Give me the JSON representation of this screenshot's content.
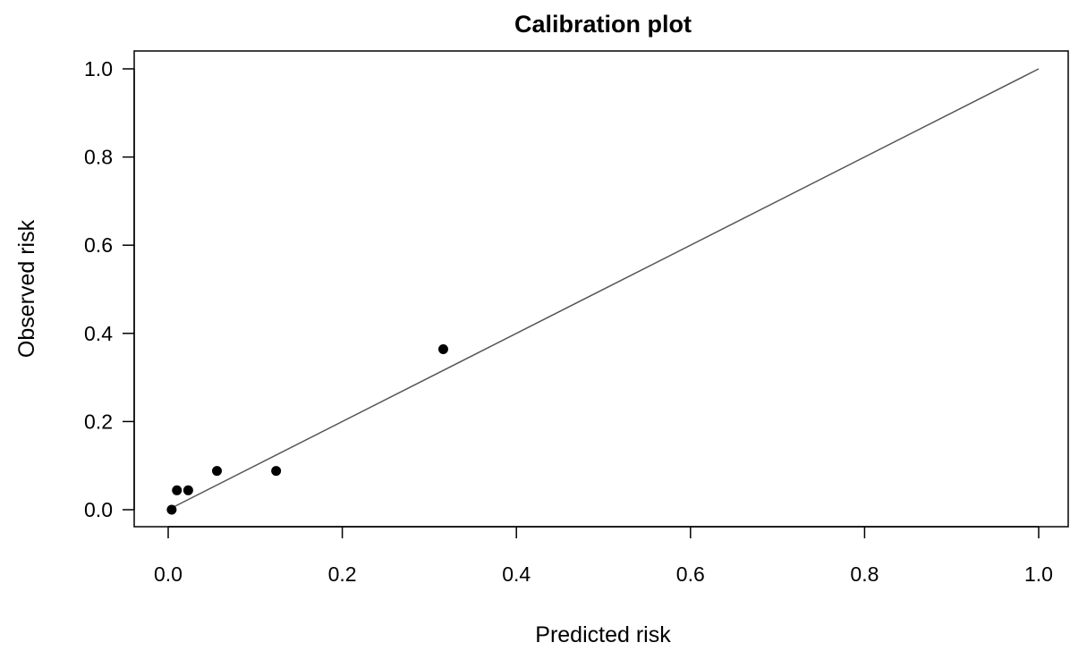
{
  "chart_data": {
    "type": "scatter",
    "title": "Calibration plot",
    "xlabel": "Predicted risk",
    "ylabel": "Observed risk",
    "xlim": [
      0,
      1
    ],
    "ylim": [
      0,
      1
    ],
    "x_ticks": [
      "0.0",
      "0.2",
      "0.4",
      "0.6",
      "0.8",
      "1.0"
    ],
    "y_ticks": [
      "0.0",
      "0.2",
      "0.4",
      "0.6",
      "0.8",
      "1.0"
    ],
    "grid": false,
    "legend": "none",
    "series": [
      {
        "points": [
          {
            "x": 0.004,
            "y": 0.0
          },
          {
            "x": 0.01,
            "y": 0.044
          },
          {
            "x": 0.023,
            "y": 0.044
          },
          {
            "x": 0.056,
            "y": 0.088
          },
          {
            "x": 0.124,
            "y": 0.088
          },
          {
            "x": 0.316,
            "y": 0.364
          }
        ],
        "color": "#000000"
      }
    ],
    "reference_line": {
      "from": [
        0,
        0
      ],
      "to": [
        1,
        1
      ],
      "color": "#555555"
    }
  }
}
